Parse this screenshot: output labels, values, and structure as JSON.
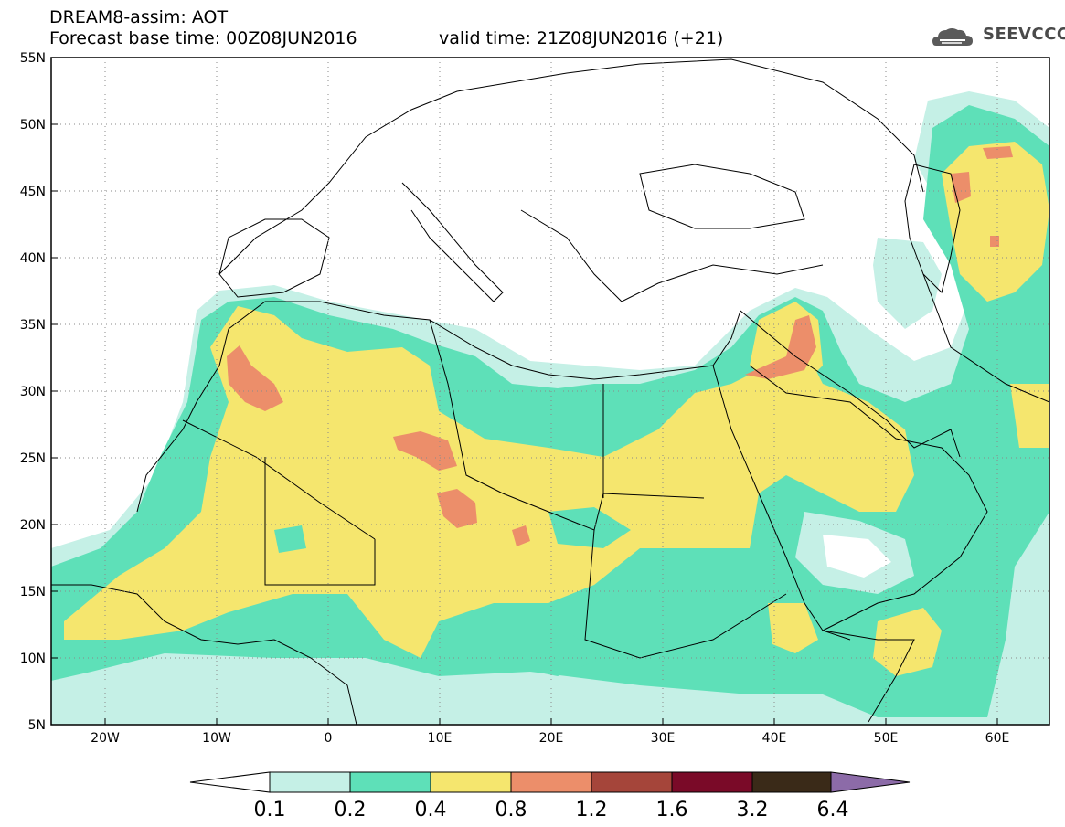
{
  "title": {
    "line1": "DREAM8-assim: AOT",
    "line2": "Forecast base time: 00Z08JUN2016",
    "valid": "valid time: 21Z08JUN2016 (+21)"
  },
  "logo": {
    "text": "SEEVCCC",
    "icon": "cloud-icon"
  },
  "axes": {
    "lon_ticks": [
      "20W",
      "10W",
      "0",
      "10E",
      "20E",
      "30E",
      "40E",
      "50E",
      "60E"
    ],
    "lat_ticks": [
      "55N",
      "50N",
      "45N",
      "40N",
      "35N",
      "30N",
      "25N",
      "20N",
      "15N",
      "10N",
      "5N"
    ]
  },
  "colorbar": {
    "labels": [
      "0.1",
      "0.2",
      "0.4",
      "0.8",
      "1.2",
      "1.6",
      "3.2",
      "6.4"
    ],
    "colors": [
      "#ffffff",
      "#c5f0e6",
      "#5ee0b8",
      "#f5e66e",
      "#ec8e6a",
      "#a5453a",
      "#7a0a28",
      "#3a2a18",
      "#8c6ba8"
    ]
  }
}
